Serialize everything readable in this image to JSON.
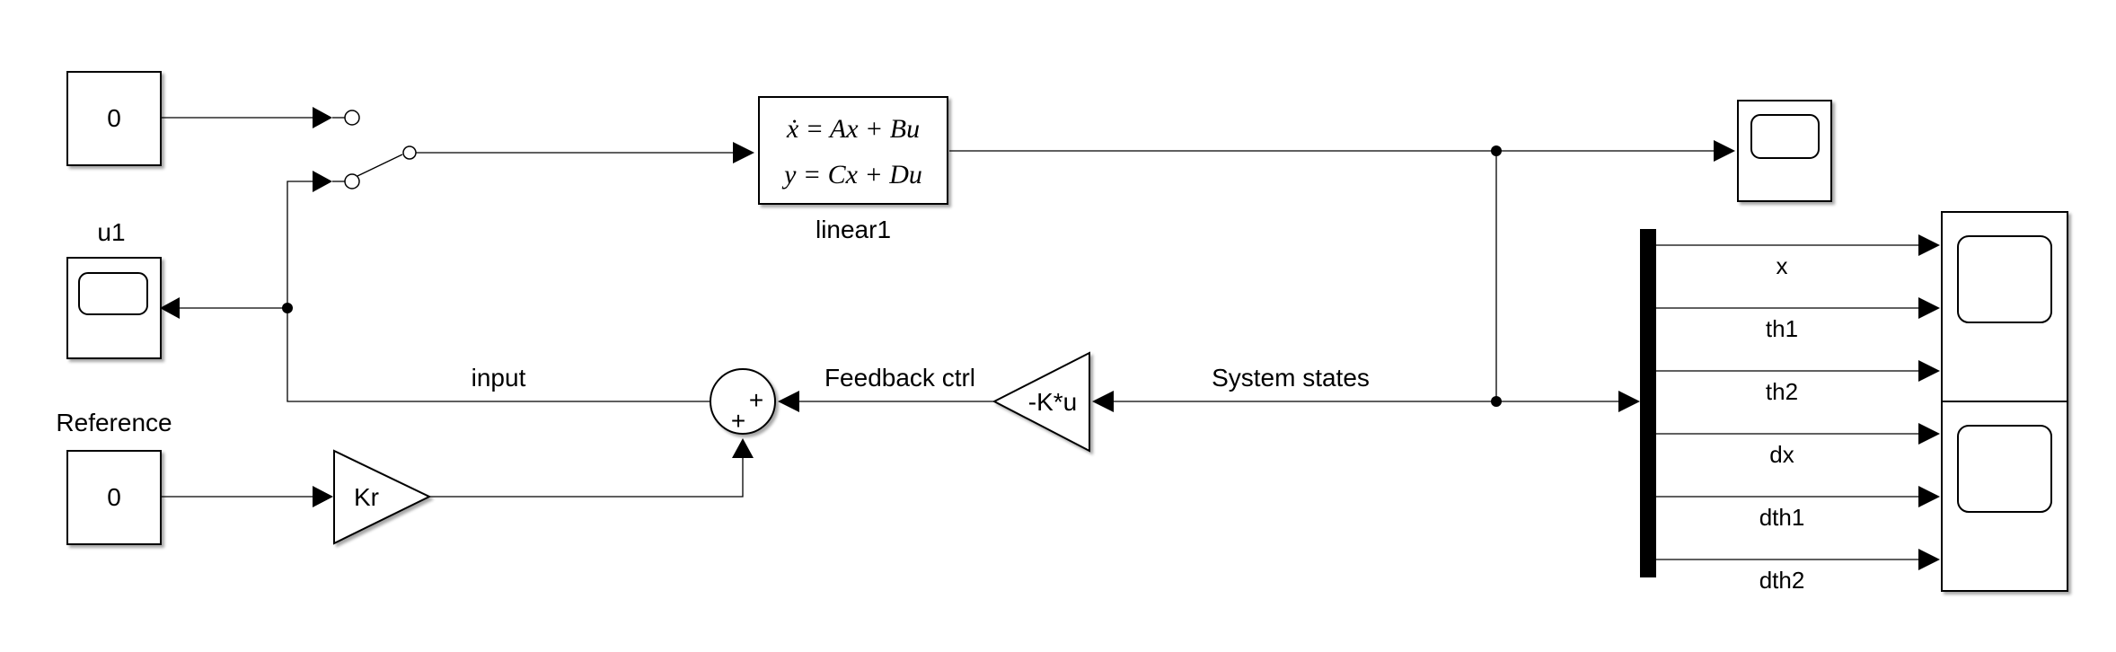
{
  "blocks": {
    "const_top": {
      "value": "0"
    },
    "scope_u1": {
      "label": "u1"
    },
    "reference": {
      "label": "Reference",
      "value": "0"
    },
    "gain_kr": {
      "text": "Kr"
    },
    "sum": {
      "signs_top": "+",
      "signs_left": "+"
    },
    "gain_k": {
      "text": "-K*u"
    },
    "state_space": {
      "line1": "ẋ = Ax + Bu",
      "line2": "y = Cx + Du",
      "name": "linear1"
    }
  },
  "signals": {
    "input": "input",
    "feedback": "Feedback ctrl",
    "states": "System states",
    "demux": [
      "x",
      "th1",
      "th2",
      "dx",
      "dth1",
      "dth2"
    ]
  },
  "colors": {
    "line": "#000000",
    "background": "#ffffff"
  }
}
